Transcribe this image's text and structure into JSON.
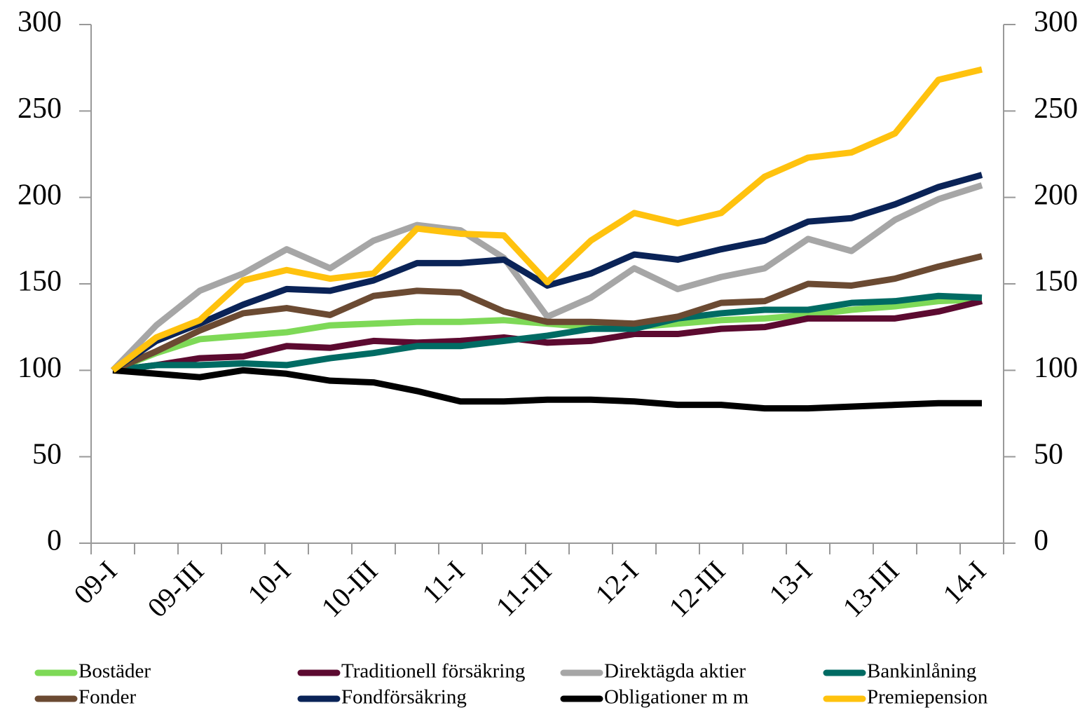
{
  "chart_data": {
    "type": "line",
    "categories": [
      "09-I",
      null,
      "09-III",
      null,
      "10-I",
      null,
      "10-III",
      null,
      "11-I",
      null,
      "11-III",
      null,
      "12-I",
      null,
      "12-III",
      null,
      "13-I",
      null,
      "13-III",
      null,
      "14-I"
    ],
    "series": [
      {
        "name": "Bostäder",
        "color": "#7ed957",
        "values": [
          100,
          110,
          118,
          120,
          122,
          126,
          127,
          128,
          128,
          129,
          127,
          125,
          125,
          127,
          129,
          130,
          132,
          135,
          137,
          140,
          141
        ]
      },
      {
        "name": "Traditionell försäkring",
        "color": "#5c0a30",
        "values": [
          100,
          103,
          107,
          108,
          114,
          113,
          117,
          116,
          117,
          119,
          116,
          117,
          121,
          121,
          124,
          125,
          130,
          130,
          130,
          134,
          140
        ]
      },
      {
        "name": "Direktägda aktier",
        "color": "#a6a6a6",
        "values": [
          100,
          126,
          146,
          156,
          170,
          159,
          175,
          184,
          181,
          165,
          131,
          142,
          159,
          147,
          154,
          159,
          176,
          169,
          187,
          199,
          207
        ]
      },
      {
        "name": "Bankinlåning",
        "color": "#006b63",
        "values": [
          100,
          103,
          103,
          104,
          103,
          107,
          110,
          114,
          114,
          117,
          120,
          124,
          124,
          130,
          133,
          135,
          135,
          139,
          140,
          143,
          142
        ]
      },
      {
        "name": "Fonder",
        "color": "#6b4a32",
        "values": [
          100,
          111,
          123,
          133,
          136,
          132,
          143,
          146,
          145,
          134,
          128,
          128,
          127,
          131,
          139,
          140,
          150,
          149,
          153,
          160,
          166
        ]
      },
      {
        "name": "Fondförsäkring",
        "color": "#0a2357",
        "values": [
          100,
          117,
          127,
          138,
          147,
          146,
          152,
          162,
          162,
          164,
          149,
          156,
          167,
          164,
          170,
          175,
          186,
          188,
          196,
          206,
          213
        ]
      },
      {
        "name": "Obligationer m m",
        "color": "#000000",
        "values": [
          100,
          98,
          96,
          100,
          98,
          94,
          93,
          88,
          82,
          82,
          83,
          83,
          82,
          80,
          80,
          78,
          78,
          79,
          80,
          81,
          81
        ]
      },
      {
        "name": "Premiepension",
        "color": "#ffc20e",
        "values": [
          100,
          119,
          129,
          152,
          158,
          153,
          156,
          182,
          179,
          178,
          151,
          175,
          191,
          185,
          191,
          212,
          223,
          226,
          237,
          268,
          274
        ]
      }
    ],
    "ylim": [
      0,
      300
    ],
    "yticks": [
      0,
      50,
      100,
      150,
      200,
      250,
      300
    ],
    "y2lim": [
      0,
      300
    ],
    "y2ticks": [
      0,
      50,
      100,
      150,
      200,
      250,
      300
    ]
  }
}
